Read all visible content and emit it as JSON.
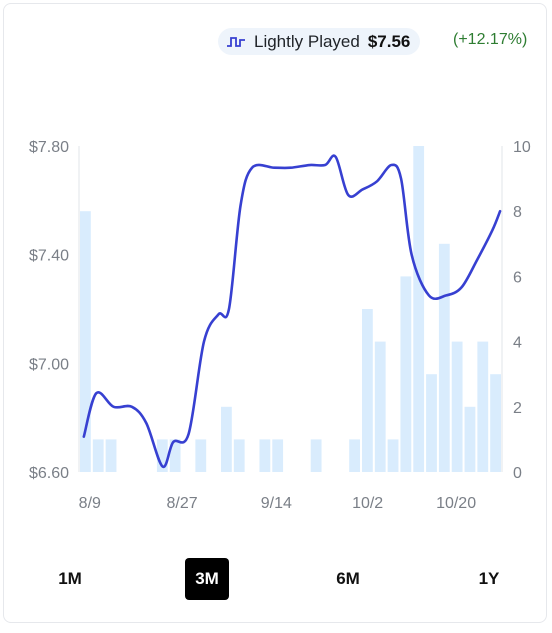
{
  "legend": {
    "icon": "step-line-icon",
    "name": "Lightly Played",
    "price": "$7.56",
    "change": "(+12.17%)",
    "change_color": "#2e7d32"
  },
  "colors": {
    "line": "#3740d1",
    "bar": "#d9ecfd",
    "grid": "#e2e4e8"
  },
  "chart_data": {
    "type": "line+bar",
    "series": [
      {
        "name": "Lightly Played",
        "kind": "line",
        "axis": "left",
        "points": [
          [
            0.5,
            6.73
          ],
          [
            1.8,
            6.89
          ],
          [
            3.6,
            6.84
          ],
          [
            5.5,
            6.84
          ],
          [
            7.0,
            6.78
          ],
          [
            8.7,
            6.62
          ],
          [
            9.8,
            6.71
          ],
          [
            11.4,
            6.74
          ],
          [
            13.0,
            7.08
          ],
          [
            14.5,
            7.18
          ],
          [
            15.6,
            7.2
          ],
          [
            16.8,
            7.58
          ],
          [
            18.0,
            7.72
          ],
          [
            20.3,
            7.72
          ],
          [
            22.0,
            7.72
          ],
          [
            24.0,
            7.73
          ],
          [
            25.6,
            7.73
          ],
          [
            26.7,
            7.76
          ],
          [
            28.0,
            7.62
          ],
          [
            29.5,
            7.64
          ],
          [
            31.0,
            7.67
          ],
          [
            32.5,
            7.73
          ],
          [
            33.5,
            7.68
          ],
          [
            34.6,
            7.4
          ],
          [
            36.4,
            7.25
          ],
          [
            38.2,
            7.25
          ],
          [
            39.8,
            7.28
          ],
          [
            41.4,
            7.38
          ],
          [
            43.0,
            7.49
          ],
          [
            43.8,
            7.56
          ]
        ]
      },
      {
        "name": "",
        "kind": "bar",
        "axis": "right",
        "values": [
          8,
          1,
          1,
          0,
          0,
          0,
          1,
          1,
          0,
          1,
          0,
          2,
          1,
          0,
          1,
          1,
          0,
          0,
          1,
          0,
          0,
          1,
          5,
          4,
          1,
          6,
          10,
          3,
          7,
          4,
          2,
          4,
          3
        ]
      }
    ],
    "x_ticks": [
      {
        "label": "8/9",
        "x": 0.5
      },
      {
        "label": "8/27",
        "x": 10.1
      },
      {
        "label": "9/14",
        "x": 19.9
      },
      {
        "label": "10/2",
        "x": 29.4
      },
      {
        "label": "10/20",
        "x": 38.6
      }
    ],
    "y_left": {
      "min": 6.6,
      "max": 7.8,
      "ticks": [
        "$7.80",
        "$7.40",
        "$7.00",
        "$6.60"
      ],
      "tick_values": [
        7.8,
        7.4,
        7.0,
        6.6
      ]
    },
    "y_right": {
      "min": 0,
      "max": 10,
      "ticks": [
        "10",
        "8",
        "6",
        "4",
        "2",
        "0"
      ],
      "tick_values": [
        10,
        8,
        6,
        4,
        2,
        0
      ]
    },
    "x_range": [
      0,
      44
    ]
  },
  "range_buttons": [
    {
      "label": "1M",
      "active": false
    },
    {
      "label": "3M",
      "active": true
    },
    {
      "label": "6M",
      "active": false
    },
    {
      "label": "1Y",
      "active": false
    }
  ]
}
